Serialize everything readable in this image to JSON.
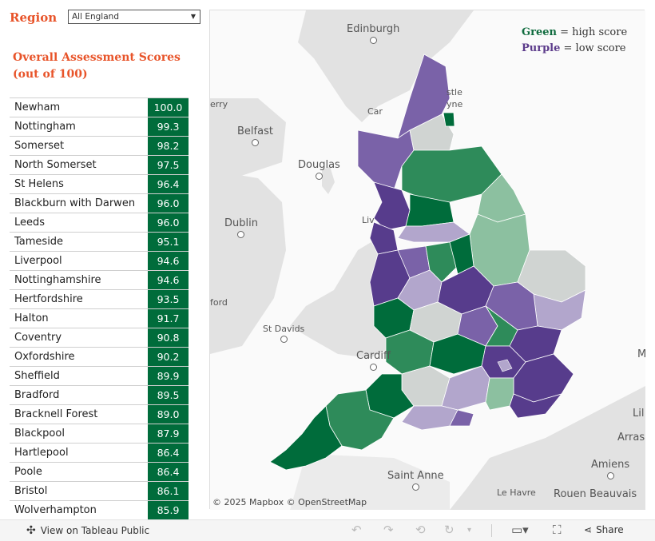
{
  "filter": {
    "label": "Region",
    "value": "All England",
    "arrow": "▼"
  },
  "scores_title": {
    "line1": "Overall Assessment Scores",
    "line2": "(out of 100)"
  },
  "table": {
    "rows": [
      {
        "name": "Newham",
        "score": "100.0"
      },
      {
        "name": "Nottingham",
        "score": "99.3"
      },
      {
        "name": "Somerset",
        "score": "98.2"
      },
      {
        "name": "North Somerset",
        "score": "97.5"
      },
      {
        "name": "St Helens",
        "score": "96.4"
      },
      {
        "name": "Blackburn with Darwen",
        "score": "96.0"
      },
      {
        "name": "Leeds",
        "score": "96.0"
      },
      {
        "name": "Tameside",
        "score": "95.1"
      },
      {
        "name": "Liverpool",
        "score": "94.6"
      },
      {
        "name": "Nottinghamshire",
        "score": "94.6"
      },
      {
        "name": "Hertfordshire",
        "score": "93.5"
      },
      {
        "name": "Halton",
        "score": "91.7"
      },
      {
        "name": "Coventry",
        "score": "90.8"
      },
      {
        "name": "Oxfordshire",
        "score": "90.2"
      },
      {
        "name": "Sheffield",
        "score": "89.9"
      },
      {
        "name": "Bradford",
        "score": "89.5"
      },
      {
        "name": "Bracknell Forest",
        "score": "89.0"
      },
      {
        "name": "Blackpool",
        "score": "87.9"
      },
      {
        "name": "Hartlepool",
        "score": "86.4"
      },
      {
        "name": "Poole",
        "score": "86.4"
      },
      {
        "name": "Bristol",
        "score": "86.1"
      },
      {
        "name": "Wolverhampton",
        "score": "85.9"
      }
    ]
  },
  "map": {
    "legend": {
      "green_word": "Green",
      "green_rest": " = high score",
      "purple_word": "Purple",
      "purple_rest": " = low score"
    },
    "places": {
      "edinburgh": "Edinburgh",
      "belfast": "Belfast",
      "douglas": "Douglas",
      "dublin": "Dublin",
      "st_davids": "St Davids",
      "cardiff": "Cardiff",
      "saint_anne": "Saint Anne",
      "amiens": "Amiens",
      "le_havre": "Le Havre",
      "rouen_beauvais": "Rouen Beauvais",
      "arras": "Arras",
      "lil": "Lil",
      "m": "M",
      "erry": "erry",
      "ford": "ford",
      "newcastle_a": "stle",
      "newcastle_b": "yne",
      "car": "Car",
      "liv": "Liv"
    },
    "attribution": "© 2025 Mapbox © OpenStreetMap",
    "colors": {
      "dark_green": "#006c3b",
      "mid_green": "#2e8b5a",
      "light_green": "#8cc0a0",
      "grey": "#d0d4d2",
      "light_purple": "#b2a6cc",
      "mid_purple": "#7a62a8",
      "dark_purple": "#573c8c"
    }
  },
  "footer": {
    "view_label": "View on Tableau Public",
    "share_label": "Share",
    "icons": [
      "undo-icon",
      "redo-icon",
      "revert-icon",
      "refresh-icon",
      "pause-dropdown-icon",
      "device-preview-icon",
      "fullscreen-icon",
      "share-icon"
    ]
  }
}
